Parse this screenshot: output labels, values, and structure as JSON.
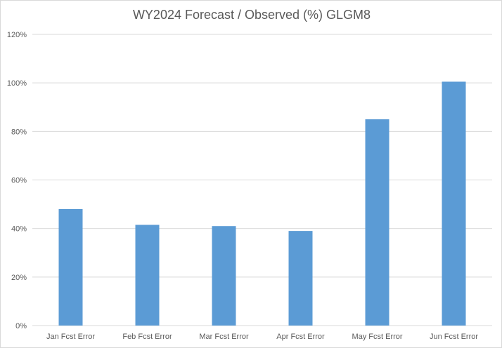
{
  "chart_data": {
    "type": "bar",
    "title": "WY2024 Forecast / Observed (%) GLGM8",
    "xlabel": "",
    "ylabel": "",
    "categories": [
      "Jan Fcst Error",
      "Feb Fcst Error",
      "Mar Fcst Error",
      "Apr Fcst Error",
      "May Fcst Error",
      "Jun Fcst Error"
    ],
    "values": [
      48,
      41.5,
      41,
      39,
      85,
      100.5
    ],
    "ylim": [
      0,
      120
    ],
    "yticks": [
      0,
      20,
      40,
      60,
      80,
      100,
      120
    ],
    "ytick_labels": [
      "0%",
      "20%",
      "40%",
      "60%",
      "80%",
      "100%",
      "120%"
    ],
    "grid": true,
    "legend": "none",
    "bar_color": "#5b9bd5",
    "grid_color": "#d9d9d9"
  }
}
